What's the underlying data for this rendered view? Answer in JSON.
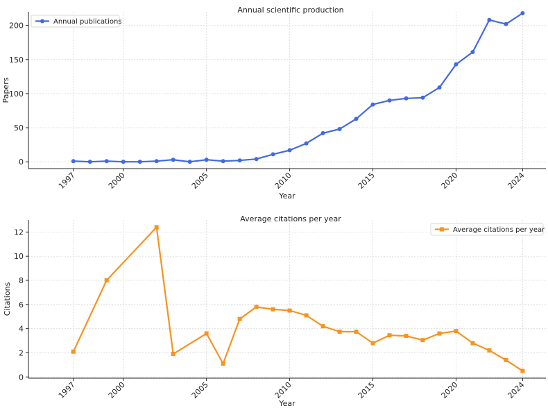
{
  "chart_data": [
    {
      "type": "line",
      "title": "Annual scientific production",
      "xlabel": "Year",
      "ylabel": "Papers",
      "xlim": [
        1994.3,
        2025.4
      ],
      "ylim": [
        -10,
        220
      ],
      "xticks": [
        1997,
        2000,
        2005,
        2010,
        2015,
        2020,
        2024
      ],
      "yticks": [
        0,
        50,
        100,
        150,
        200
      ],
      "grid": true,
      "legend_position": "top-left",
      "marker": "circle",
      "series": [
        {
          "name": "Annual publications",
          "color": "#4169E1",
          "x": [
            1997,
            1998,
            1999,
            2000,
            2001,
            2002,
            2003,
            2004,
            2005,
            2006,
            2007,
            2008,
            2009,
            2010,
            2011,
            2012,
            2013,
            2014,
            2015,
            2016,
            2017,
            2018,
            2019,
            2020,
            2021,
            2022,
            2023,
            2024
          ],
          "values": [
            1,
            0,
            1,
            0,
            0,
            1,
            3,
            0,
            3,
            1,
            2,
            4,
            11,
            17,
            27,
            42,
            48,
            63,
            84,
            90,
            93,
            94,
            109,
            143,
            161,
            208,
            202,
            218
          ]
        }
      ]
    },
    {
      "type": "line",
      "title": "Average citations per year",
      "xlabel": "Year",
      "ylabel": "Citations",
      "xlim": [
        1994.3,
        2025.4
      ],
      "ylim": [
        -0.1,
        13.0
      ],
      "xticks": [
        1997,
        2000,
        2005,
        2010,
        2015,
        2020,
        2024
      ],
      "yticks": [
        0,
        2,
        4,
        6,
        8,
        10,
        12
      ],
      "grid": true,
      "legend_position": "top-right",
      "marker": "square",
      "series": [
        {
          "name": "Average citations per year",
          "color": "#F7931E",
          "x": [
            1997,
            1999,
            2002,
            2003,
            2005,
            2006,
            2007,
            2008,
            2009,
            2010,
            2011,
            2012,
            2013,
            2014,
            2015,
            2016,
            2017,
            2018,
            2019,
            2020,
            2021,
            2022,
            2023,
            2024
          ],
          "values": [
            2.1,
            8.0,
            12.4,
            1.9,
            3.6,
            1.1,
            4.8,
            5.8,
            5.6,
            5.5,
            5.1,
            4.2,
            3.75,
            3.75,
            2.8,
            3.45,
            3.4,
            3.05,
            3.6,
            3.8,
            2.8,
            2.2,
            1.4,
            0.5
          ]
        }
      ]
    }
  ]
}
